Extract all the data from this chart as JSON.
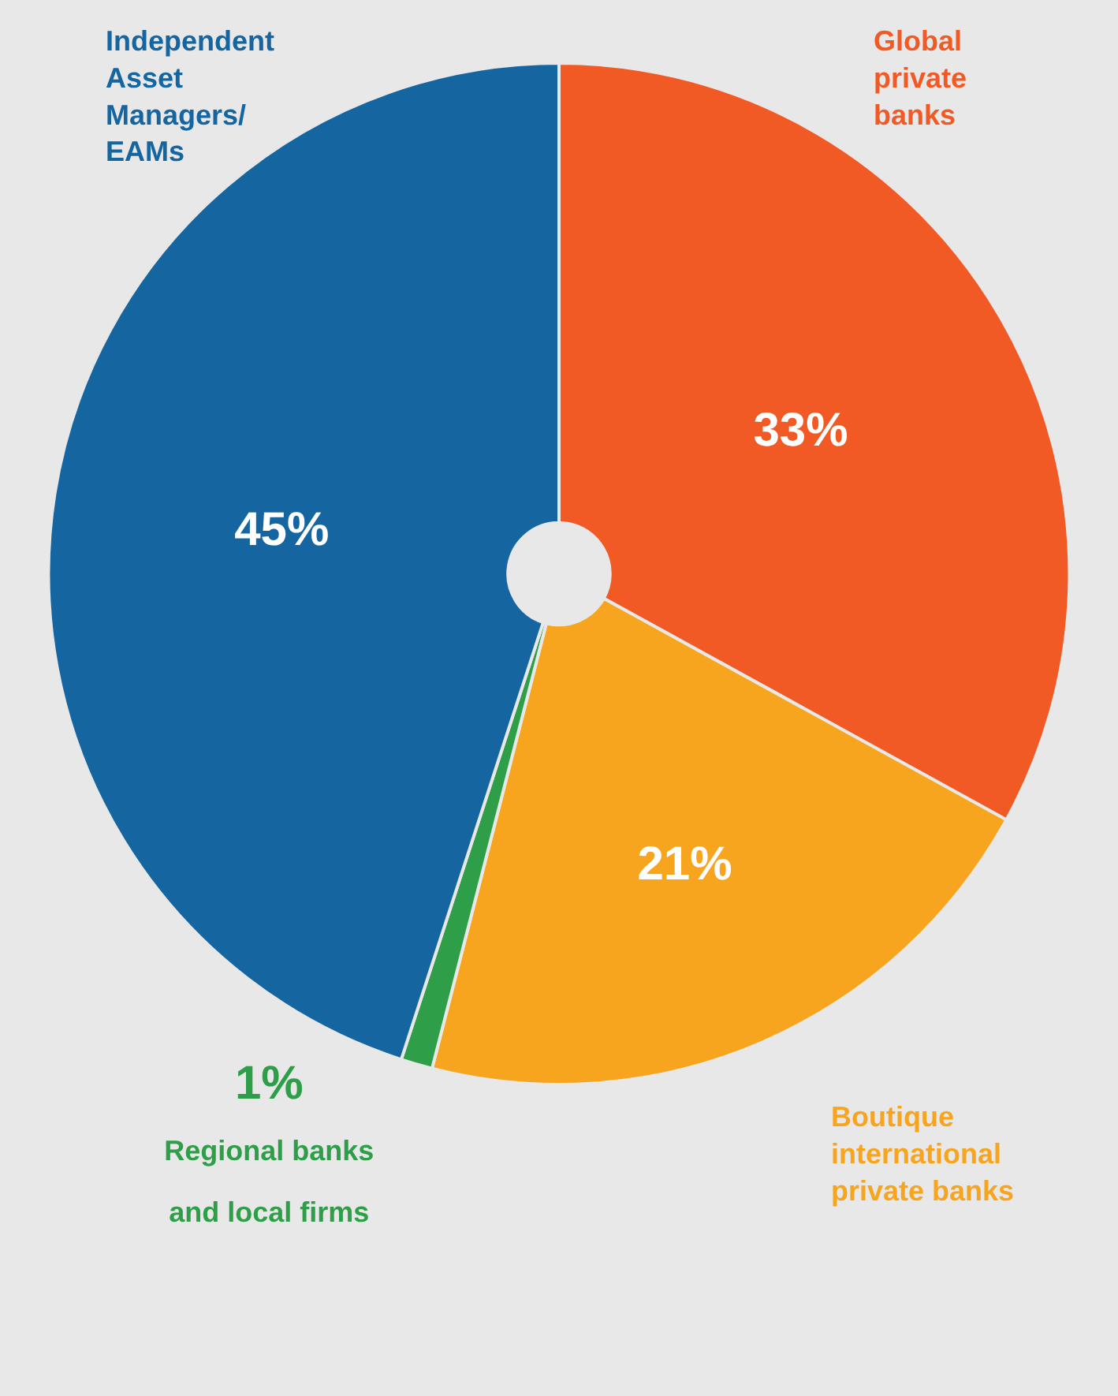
{
  "chart_data": {
    "type": "pie",
    "categories": [
      "Global\nprivate\nbanks",
      "Boutique\ninternational\nprivate banks",
      "Regional banks\nand local firms",
      "Independent\nAsset\nManagers/\nEAMs"
    ],
    "values": [
      33,
      21,
      1,
      45
    ],
    "colors": [
      "#f15a24",
      "#f7a51e",
      "#2e9e48",
      "#1565a0"
    ],
    "value_labels": [
      "33%",
      "21%",
      "1%",
      "45%"
    ],
    "legend": false
  }
}
